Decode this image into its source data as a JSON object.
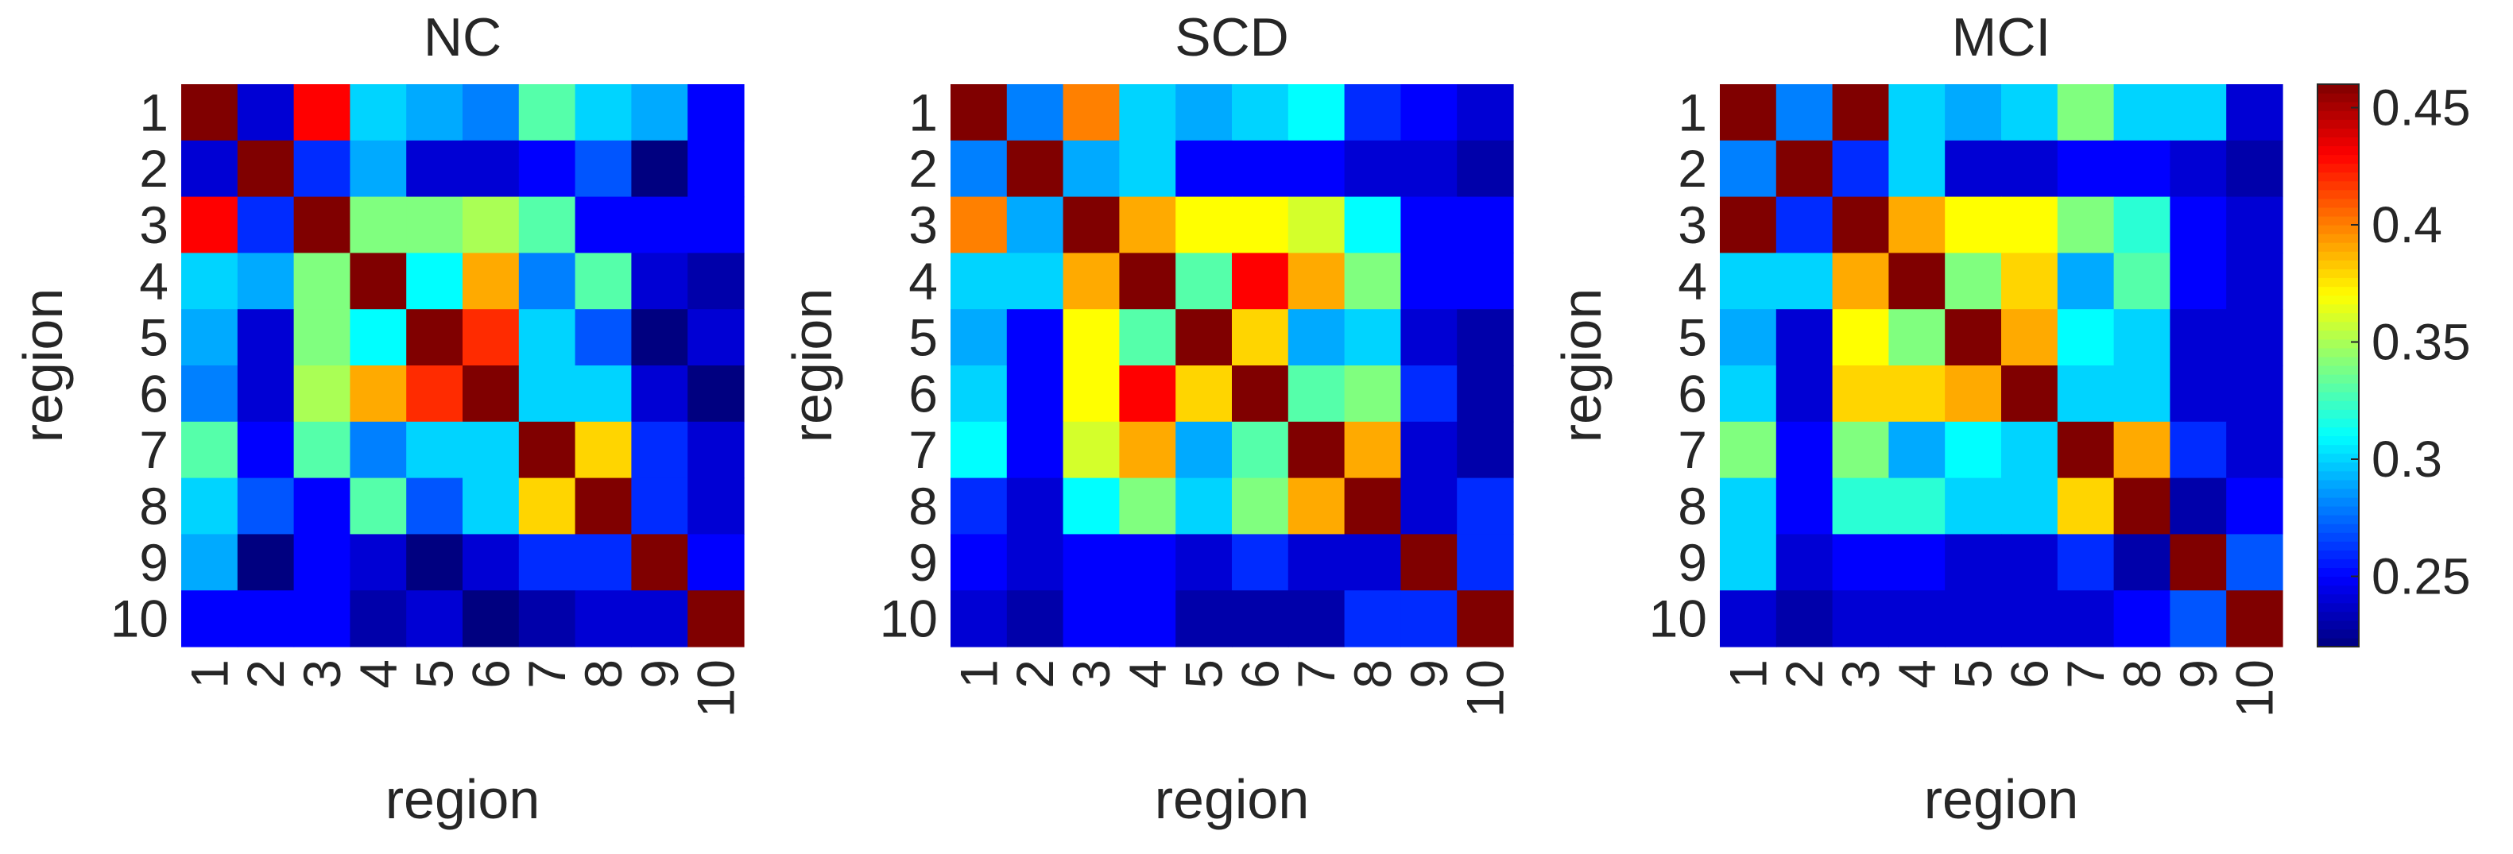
{
  "chart_data": [
    {
      "type": "heatmap",
      "title": "NC",
      "xlabel": "region",
      "ylabel": "region",
      "row_labels": [
        "1",
        "2",
        "3",
        "4",
        "5",
        "6",
        "7",
        "8",
        "9",
        "10"
      ],
      "col_labels": [
        "1",
        "2",
        "3",
        "4",
        "5",
        "6",
        "7",
        "8",
        "9",
        "10"
      ],
      "values": [
        [
          0.46,
          0.24,
          0.43,
          0.3,
          0.29,
          0.28,
          0.33,
          0.3,
          0.29,
          0.25
        ],
        [
          0.24,
          0.46,
          0.26,
          0.29,
          0.24,
          0.24,
          0.25,
          0.27,
          0.22,
          0.25
        ],
        [
          0.43,
          0.26,
          0.46,
          0.34,
          0.34,
          0.35,
          0.33,
          0.25,
          0.25,
          0.25
        ],
        [
          0.3,
          0.29,
          0.34,
          0.46,
          0.31,
          0.39,
          0.28,
          0.33,
          0.24,
          0.23
        ],
        [
          0.29,
          0.24,
          0.34,
          0.31,
          0.46,
          0.42,
          0.3,
          0.27,
          0.22,
          0.24
        ],
        [
          0.28,
          0.24,
          0.35,
          0.39,
          0.42,
          0.46,
          0.3,
          0.3,
          0.24,
          0.22
        ],
        [
          0.33,
          0.25,
          0.33,
          0.28,
          0.3,
          0.3,
          0.46,
          0.38,
          0.26,
          0.24
        ],
        [
          0.3,
          0.27,
          0.25,
          0.33,
          0.27,
          0.3,
          0.38,
          0.46,
          0.26,
          0.24
        ],
        [
          0.29,
          0.22,
          0.25,
          0.24,
          0.22,
          0.24,
          0.26,
          0.26,
          0.46,
          0.25
        ],
        [
          0.25,
          0.25,
          0.25,
          0.23,
          0.24,
          0.22,
          0.23,
          0.24,
          0.24,
          0.46
        ]
      ]
    },
    {
      "type": "heatmap",
      "title": "SCD",
      "xlabel": "region",
      "ylabel": "region",
      "row_labels": [
        "1",
        "2",
        "3",
        "4",
        "5",
        "6",
        "7",
        "8",
        "9",
        "10"
      ],
      "col_labels": [
        "1",
        "2",
        "3",
        "4",
        "5",
        "6",
        "7",
        "8",
        "9",
        "10"
      ],
      "values": [
        [
          0.46,
          0.28,
          0.4,
          0.3,
          0.29,
          0.3,
          0.31,
          0.26,
          0.25,
          0.24
        ],
        [
          0.28,
          0.46,
          0.29,
          0.3,
          0.25,
          0.25,
          0.25,
          0.24,
          0.24,
          0.23
        ],
        [
          0.4,
          0.29,
          0.46,
          0.39,
          0.37,
          0.37,
          0.36,
          0.31,
          0.25,
          0.25
        ],
        [
          0.3,
          0.3,
          0.39,
          0.46,
          0.33,
          0.43,
          0.39,
          0.34,
          0.25,
          0.25
        ],
        [
          0.29,
          0.25,
          0.37,
          0.33,
          0.46,
          0.38,
          0.29,
          0.3,
          0.24,
          0.23
        ],
        [
          0.3,
          0.25,
          0.37,
          0.43,
          0.38,
          0.46,
          0.33,
          0.34,
          0.26,
          0.23
        ],
        [
          0.31,
          0.25,
          0.36,
          0.39,
          0.29,
          0.33,
          0.46,
          0.39,
          0.24,
          0.23
        ],
        [
          0.26,
          0.24,
          0.31,
          0.34,
          0.3,
          0.34,
          0.39,
          0.46,
          0.24,
          0.26
        ],
        [
          0.25,
          0.24,
          0.25,
          0.25,
          0.24,
          0.26,
          0.24,
          0.24,
          0.46,
          0.26
        ],
        [
          0.24,
          0.23,
          0.25,
          0.25,
          0.23,
          0.23,
          0.23,
          0.26,
          0.26,
          0.46
        ]
      ]
    },
    {
      "type": "heatmap",
      "title": "MCI",
      "xlabel": "region",
      "ylabel": "region",
      "row_labels": [
        "1",
        "2",
        "3",
        "4",
        "5",
        "6",
        "7",
        "8",
        "9",
        "10"
      ],
      "col_labels": [
        "1",
        "2",
        "3",
        "4",
        "5",
        "6",
        "7",
        "8",
        "9",
        "10"
      ],
      "values": [
        [
          0.46,
          0.28,
          0.46,
          0.3,
          0.29,
          0.3,
          0.34,
          0.3,
          0.3,
          0.24
        ],
        [
          0.28,
          0.46,
          0.26,
          0.3,
          0.24,
          0.24,
          0.25,
          0.25,
          0.24,
          0.23
        ],
        [
          0.46,
          0.26,
          0.46,
          0.39,
          0.37,
          0.37,
          0.34,
          0.32,
          0.25,
          0.24
        ],
        [
          0.3,
          0.3,
          0.39,
          0.46,
          0.34,
          0.38,
          0.29,
          0.33,
          0.25,
          0.24
        ],
        [
          0.29,
          0.24,
          0.37,
          0.34,
          0.46,
          0.39,
          0.31,
          0.3,
          0.24,
          0.24
        ],
        [
          0.3,
          0.24,
          0.38,
          0.38,
          0.39,
          0.46,
          0.3,
          0.3,
          0.24,
          0.24
        ],
        [
          0.34,
          0.25,
          0.34,
          0.29,
          0.31,
          0.3,
          0.46,
          0.39,
          0.26,
          0.24
        ],
        [
          0.3,
          0.25,
          0.32,
          0.32,
          0.3,
          0.3,
          0.38,
          0.46,
          0.23,
          0.25
        ],
        [
          0.3,
          0.24,
          0.25,
          0.25,
          0.24,
          0.24,
          0.26,
          0.23,
          0.46,
          0.27
        ],
        [
          0.24,
          0.23,
          0.24,
          0.24,
          0.24,
          0.24,
          0.24,
          0.25,
          0.27,
          0.46
        ]
      ]
    }
  ],
  "colorbar": {
    "colormap": "jet",
    "min": 0.22,
    "max": 0.46,
    "ticks": [
      0.25,
      0.3,
      0.35,
      0.4,
      0.45
    ],
    "tick_labels": [
      "0.25",
      "0.3",
      "0.35",
      "0.4",
      "0.45"
    ]
  }
}
